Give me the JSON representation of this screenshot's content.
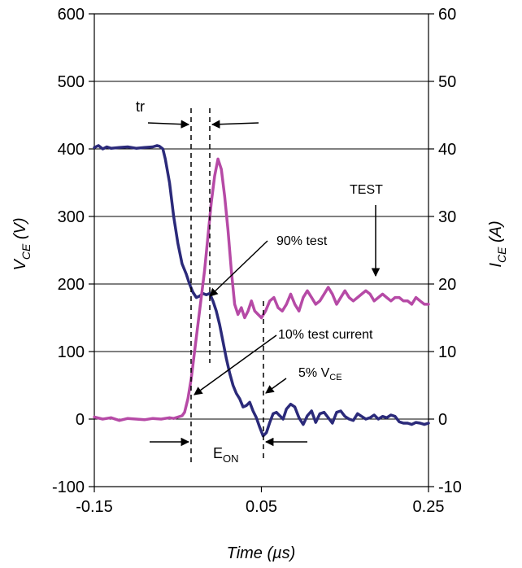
{
  "chart_data": {
    "type": "line",
    "xlabel": "Time (µs)",
    "ylabel_left": "V",
    "ylabel_left_sub": "CE",
    "ylabel_left_unit": " (V)",
    "ylabel_right": "I",
    "ylabel_right_sub": "CE",
    "ylabel_right_unit": " (A)",
    "xlim": [
      -0.15,
      0.25
    ],
    "ylim_left": [
      -100,
      600
    ],
    "ylim_right": [
      -10,
      60
    ],
    "x_ticks": [
      "-0.15",
      "0.05",
      "0.25"
    ],
    "x_tick_values": [
      -0.15,
      0.05,
      0.25
    ],
    "y_left_ticks": [
      "-100",
      "0",
      "100",
      "200",
      "300",
      "400",
      "500",
      "600"
    ],
    "y_left_tick_values": [
      -100,
      0,
      100,
      200,
      300,
      400,
      500,
      600
    ],
    "y_right_ticks": [
      "-10",
      "0",
      "10",
      "20",
      "30",
      "40",
      "50",
      "60"
    ],
    "y_right_tick_values": [
      -10,
      0,
      10,
      20,
      30,
      40,
      50,
      60
    ],
    "grid": "horizontal",
    "series": [
      {
        "axis": "left",
        "color": "#2b2a7a",
        "x": [
          -0.15,
          -0.145,
          -0.14,
          -0.135,
          -0.13,
          -0.12,
          -0.11,
          -0.1,
          -0.09,
          -0.08,
          -0.075,
          -0.072,
          -0.068,
          -0.065,
          -0.06,
          -0.055,
          -0.05,
          -0.045,
          -0.04,
          -0.036,
          -0.032,
          -0.028,
          -0.024,
          -0.02,
          -0.016,
          -0.012,
          -0.008,
          -0.004,
          0.0,
          0.004,
          0.008,
          0.012,
          0.016,
          0.02,
          0.024,
          0.028,
          0.032,
          0.036,
          0.04,
          0.044,
          0.048,
          0.052,
          0.056,
          0.06,
          0.064,
          0.068,
          0.072,
          0.076,
          0.08,
          0.085,
          0.09,
          0.095,
          0.1,
          0.105,
          0.11,
          0.115,
          0.12,
          0.125,
          0.13,
          0.135,
          0.14,
          0.145,
          0.15,
          0.155,
          0.16,
          0.165,
          0.17,
          0.175,
          0.18,
          0.185,
          0.19,
          0.195,
          0.2,
          0.205,
          0.21,
          0.215,
          0.22,
          0.225,
          0.23,
          0.235,
          0.24,
          0.245,
          0.25
        ],
        "values": [
          402,
          405,
          400,
          403,
          401,
          402,
          403,
          401,
          402,
          403,
          405,
          404,
          400,
          385,
          350,
          300,
          260,
          230,
          215,
          200,
          188,
          180,
          182,
          186,
          184,
          186,
          175,
          160,
          140,
          115,
          90,
          68,
          50,
          38,
          30,
          18,
          20,
          25,
          12,
          2,
          -12,
          -25,
          -20,
          -5,
          8,
          10,
          5,
          0,
          15,
          22,
          18,
          2,
          -8,
          5,
          12,
          -5,
          8,
          10,
          2,
          -6,
          10,
          12,
          4,
          0,
          -2,
          8,
          4,
          0,
          2,
          6,
          0,
          4,
          2,
          6,
          4,
          -4,
          -6,
          -6,
          -8,
          -5,
          -6,
          -8,
          -6
        ]
      },
      {
        "axis": "right",
        "color": "#b64aa6",
        "x": [
          -0.15,
          -0.14,
          -0.13,
          -0.12,
          -0.11,
          -0.1,
          -0.09,
          -0.08,
          -0.07,
          -0.06,
          -0.055,
          -0.05,
          -0.045,
          -0.042,
          -0.038,
          -0.034,
          -0.03,
          -0.026,
          -0.022,
          -0.018,
          -0.014,
          -0.01,
          -0.006,
          -0.002,
          0.002,
          0.006,
          0.01,
          0.014,
          0.018,
          0.022,
          0.026,
          0.03,
          0.034,
          0.038,
          0.042,
          0.046,
          0.05,
          0.055,
          0.06,
          0.065,
          0.07,
          0.075,
          0.08,
          0.085,
          0.09,
          0.095,
          0.1,
          0.105,
          0.11,
          0.115,
          0.12,
          0.125,
          0.13,
          0.135,
          0.14,
          0.145,
          0.15,
          0.155,
          0.16,
          0.165,
          0.17,
          0.175,
          0.18,
          0.185,
          0.19,
          0.195,
          0.2,
          0.205,
          0.21,
          0.215,
          0.22,
          0.225,
          0.23,
          0.235,
          0.24,
          0.245,
          0.25
        ],
        "values": [
          0.3,
          0,
          0.2,
          -0.2,
          0.1,
          0,
          -0.1,
          0.1,
          0,
          0.2,
          0.1,
          0.3,
          0.5,
          1,
          3,
          6,
          10,
          14,
          18,
          22,
          27,
          32,
          36,
          38.5,
          37,
          33,
          28,
          22,
          17,
          15.5,
          16.5,
          15,
          16,
          17.5,
          16,
          15.5,
          15,
          16,
          17.5,
          18,
          16.5,
          16,
          17,
          18.5,
          17,
          16,
          18,
          19,
          18,
          17,
          17.5,
          18.5,
          19.5,
          18.5,
          17,
          18,
          19,
          18,
          17.5,
          18,
          18.5,
          19,
          18.5,
          17.5,
          18,
          18.5,
          18,
          17.5,
          18,
          18,
          17.5,
          17.5,
          17,
          18,
          17.5,
          17,
          17
        ]
      }
    ],
    "annotations": {
      "tr": "tr",
      "ninety_pct": "90% test",
      "test": "TEST",
      "ten_pct": "10% test current",
      "five_pct": "5% V",
      "five_pct_sub": "CE",
      "eon": "E",
      "eon_sub": "ON"
    }
  }
}
